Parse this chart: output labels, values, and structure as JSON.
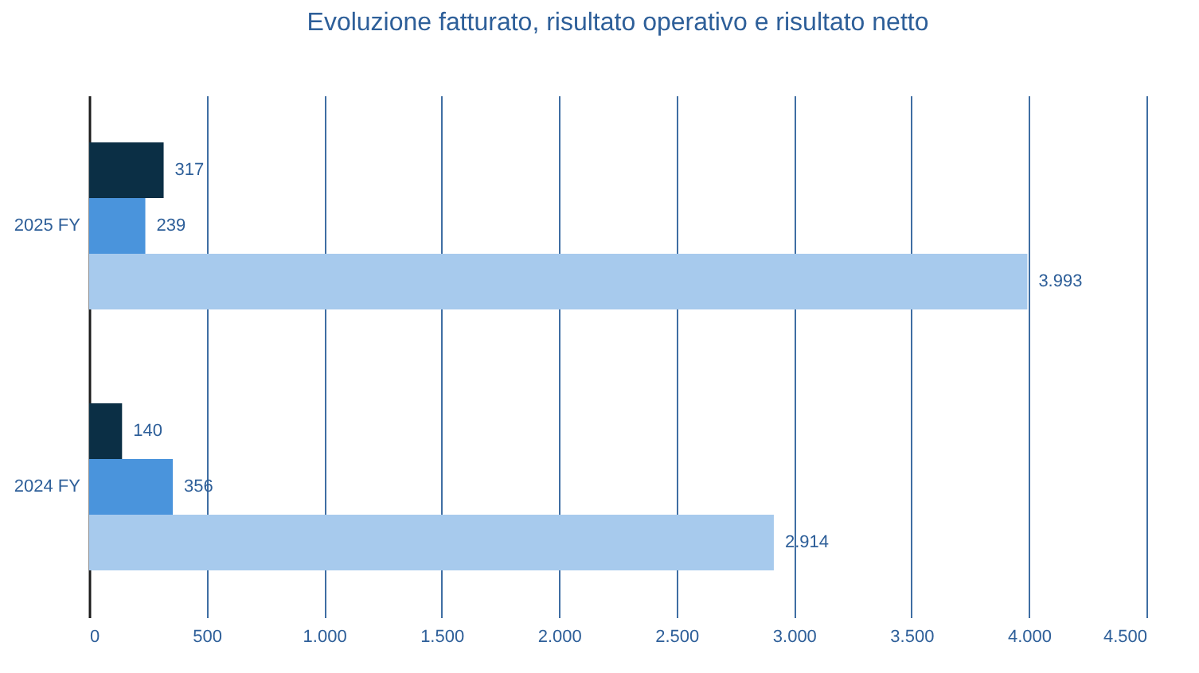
{
  "chart_data": {
    "type": "bar",
    "orientation": "horizontal",
    "title": "Evoluzione fatturato, risultato operativo e risultato netto",
    "categories": [
      "2025 FY",
      "2024 FY"
    ],
    "series": [
      {
        "color": "#0b2f45",
        "values": [
          317,
          140
        ],
        "value_labels": [
          "317",
          "140"
        ]
      },
      {
        "color": "#4a94dc",
        "values": [
          239,
          356
        ],
        "value_labels": [
          "239",
          "356"
        ]
      },
      {
        "color": "#a7caed",
        "values": [
          3993,
          2914
        ],
        "value_labels": [
          "3.993",
          "2.914"
        ]
      }
    ],
    "xlim": [
      0,
      4500
    ],
    "xticks": [
      0,
      500,
      {
        "value": 1000,
        "label": "1.000"
      },
      {
        "value": 1500,
        "label": "1.500"
      },
      {
        "value": 2000,
        "label": "2.000"
      },
      {
        "value": 2500,
        "label": "2.500"
      },
      {
        "value": 3000,
        "label": "3.000"
      },
      {
        "value": 3500,
        "label": "3.500"
      },
      {
        "value": 4000,
        "label": "4.000"
      },
      {
        "value": 4500,
        "label": "4.500"
      }
    ],
    "grid": "x"
  }
}
